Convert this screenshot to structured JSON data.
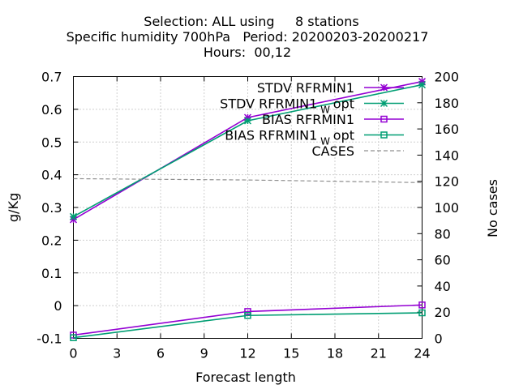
{
  "chart_data": {
    "type": "line",
    "title_lines": [
      "Selection: ALL using     8 stations",
      "Specific humidity 700hPa   Period: 20200203-20200217",
      "Hours:  00,12"
    ],
    "xlabel": "Forecast length",
    "ylabel": "g/Kg",
    "y2label": "No cases",
    "xlim": [
      0,
      24
    ],
    "ylim": [
      -0.1,
      0.7
    ],
    "y2lim": [
      0,
      200
    ],
    "xticks": [
      0,
      3,
      6,
      9,
      12,
      15,
      18,
      21,
      24
    ],
    "yticks": [
      -0.1,
      0,
      0.1,
      0.2,
      0.3,
      0.4,
      0.5,
      0.6,
      0.7
    ],
    "y2ticks": [
      0,
      20,
      40,
      60,
      80,
      100,
      120,
      140,
      160,
      180,
      200
    ],
    "grid": true,
    "legend_position": "top-right",
    "series": [
      {
        "name": "STDV RFRMIN1",
        "name_main": "STDV RFRMIN1",
        "name_sub": "",
        "name_tail": "",
        "color": "#9400d3",
        "marker": "star",
        "axis": "left",
        "dash": false,
        "x": [
          0,
          12,
          24
        ],
        "y": [
          0.263,
          0.575,
          0.685
        ]
      },
      {
        "name": "STDV RFRMIN1_W opt",
        "name_main": "STDV RFRMIN1",
        "name_sub": "W",
        "name_tail": "opt",
        "color": "#009e73",
        "marker": "star",
        "axis": "left",
        "dash": false,
        "x": [
          0,
          12,
          24
        ],
        "y": [
          0.272,
          0.565,
          0.675
        ]
      },
      {
        "name": "BIAS RFRMIN1",
        "name_main": "BIAS RFRMIN1",
        "name_sub": "",
        "name_tail": "",
        "color": "#9400d3",
        "marker": "square",
        "axis": "left",
        "dash": false,
        "x": [
          0,
          12,
          24
        ],
        "y": [
          -0.09,
          -0.018,
          0.002
        ]
      },
      {
        "name": "BIAS RFRMIN1_W opt",
        "name_main": "BIAS RFRMIN1",
        "name_sub": "W",
        "name_tail": "opt",
        "color": "#009e73",
        "marker": "square",
        "axis": "left",
        "dash": false,
        "x": [
          0,
          12,
          24
        ],
        "y": [
          -0.098,
          -0.03,
          -0.022
        ]
      },
      {
        "name": "CASES",
        "name_main": "CASES",
        "name_sub": "",
        "name_tail": "",
        "color": "#909090",
        "marker": "none",
        "axis": "right",
        "dash": true,
        "x": [
          0,
          12,
          24
        ],
        "y": [
          122,
          121,
          119
        ]
      }
    ]
  }
}
